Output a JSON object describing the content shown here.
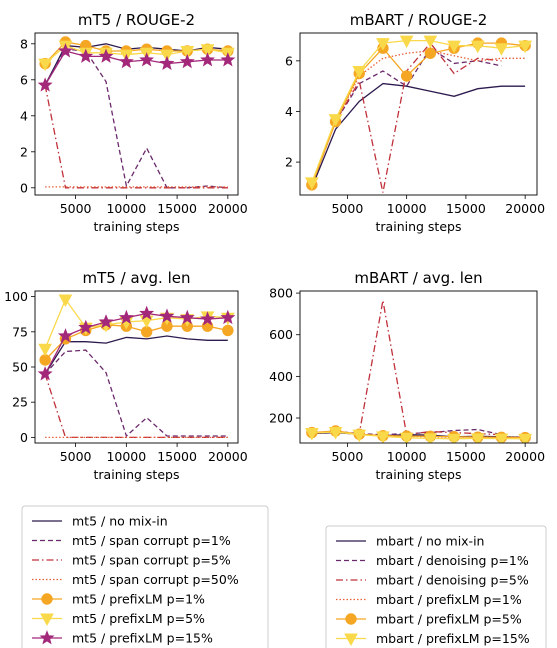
{
  "chart_data": [
    {
      "type": "line",
      "title": "mT5 / ROUGE-2",
      "xlabel": "training steps",
      "ylabel": "",
      "xlim": [
        1000,
        21000
      ],
      "ylim": [
        -0.4,
        8.6
      ],
      "xticks": [
        5000,
        10000,
        15000,
        20000
      ],
      "yticks": [
        0,
        2,
        4,
        6,
        8
      ],
      "x": [
        2000,
        4000,
        6000,
        8000,
        10000,
        12000,
        14000,
        16000,
        18000,
        20000
      ],
      "series": [
        {
          "name": "mt5 / no mix-in",
          "values": [
            5.7,
            7.9,
            7.8,
            8.0,
            7.7,
            7.8,
            7.7,
            7.6,
            7.8,
            7.7
          ]
        },
        {
          "name": "mt5 / span corrupt p=1%",
          "values": [
            5.7,
            7.7,
            7.6,
            5.9,
            0.1,
            2.2,
            0.0,
            0.0,
            0.1,
            0.0
          ]
        },
        {
          "name": "mt5 / span corrupt p=5%",
          "values": [
            5.7,
            0.0,
            0.0,
            0.0,
            0.0,
            0.0,
            0.0,
            0.0,
            0.0,
            0.0
          ]
        },
        {
          "name": "mt5 / span corrupt p=50%",
          "values": [
            0.05,
            0.05,
            0.05,
            0.05,
            0.05,
            0.05,
            0.05,
            0.05,
            0.05,
            0.05
          ]
        },
        {
          "name": "mt5 / prefixLM p=1%",
          "values": [
            6.9,
            8.1,
            7.9,
            7.6,
            7.6,
            7.7,
            7.6,
            7.6,
            7.7,
            7.6
          ]
        },
        {
          "name": "mt5 / prefixLM p=5%",
          "values": [
            6.9,
            7.9,
            7.5,
            7.5,
            7.4,
            7.5,
            7.4,
            7.6,
            7.7,
            7.5
          ]
        },
        {
          "name": "mt5 / prefixLM p=15%",
          "values": [
            5.7,
            7.6,
            7.3,
            7.3,
            7.0,
            7.1,
            6.9,
            7.0,
            7.1,
            7.1
          ]
        }
      ]
    },
    {
      "type": "line",
      "title": "mBART / ROUGE-2",
      "xlabel": "training steps",
      "ylabel": "",
      "xlim": [
        1000,
        21000
      ],
      "ylim": [
        0.7,
        7.1
      ],
      "xticks": [
        5000,
        10000,
        15000,
        20000
      ],
      "yticks": [
        2,
        4,
        6
      ],
      "x": [
        2000,
        4000,
        6000,
        8000,
        10000,
        12000,
        14000,
        16000,
        18000,
        20000
      ],
      "series": [
        {
          "name": "mbart / no mix-in",
          "values": [
            1.0,
            3.3,
            4.4,
            5.1,
            5.0,
            4.8,
            4.6,
            4.9,
            5.0,
            5.0
          ]
        },
        {
          "name": "mbart / denoising p=1%",
          "values": [
            1.1,
            3.6,
            5.1,
            5.6,
            5.0,
            6.5,
            5.9,
            6.0,
            5.8,
            null
          ]
        },
        {
          "name": "mbart / denoising p=5%",
          "values": [
            1.1,
            3.6,
            5.2,
            0.8,
            5.6,
            6.7,
            5.5,
            6.1,
            6.0,
            null
          ]
        },
        {
          "name": "mbart / prefixLM p=1%",
          "values": [
            1.1,
            3.6,
            5.4,
            6.1,
            6.3,
            6.4,
            6.2,
            6.0,
            6.1,
            6.1
          ]
        },
        {
          "name": "mbart / prefixLM p=5%",
          "values": [
            1.1,
            3.6,
            5.5,
            6.5,
            5.4,
            6.3,
            6.5,
            6.7,
            6.7,
            6.6
          ]
        },
        {
          "name": "mbart / prefixLM p=15%",
          "values": [
            1.2,
            3.7,
            5.6,
            6.7,
            6.8,
            6.8,
            6.6,
            6.6,
            6.5,
            6.6
          ]
        }
      ]
    },
    {
      "type": "line",
      "title": "mT5 / avg. len",
      "xlabel": "training steps",
      "ylabel": "",
      "xlim": [
        1000,
        21000
      ],
      "ylim": [
        -4,
        104
      ],
      "xticks": [
        5000,
        10000,
        15000,
        20000
      ],
      "yticks": [
        0,
        25,
        50,
        75,
        100
      ],
      "x": [
        2000,
        4000,
        6000,
        8000,
        10000,
        12000,
        14000,
        16000,
        18000,
        20000
      ],
      "series": [
        {
          "name": "mt5 / no mix-in",
          "values": [
            45,
            68,
            68,
            67,
            71,
            70,
            72,
            70,
            69,
            69
          ]
        },
        {
          "name": "mt5 / span corrupt p=1%",
          "values": [
            45,
            61,
            62,
            46,
            1,
            14,
            1,
            1,
            1,
            1
          ]
        },
        {
          "name": "mt5 / span corrupt p=5%",
          "values": [
            45,
            0,
            0,
            0,
            0,
            0,
            0,
            0,
            0,
            0
          ]
        },
        {
          "name": "mt5 / span corrupt p=50%",
          "values": [
            0,
            0,
            0,
            0,
            0,
            0,
            0,
            0,
            0,
            0
          ]
        },
        {
          "name": "mt5 / prefixLM p=1%",
          "values": [
            55,
            70,
            76,
            80,
            79,
            75,
            79,
            79,
            79,
            76
          ]
        },
        {
          "name": "mt5 / prefixLM p=5%",
          "values": [
            63,
            98,
            78,
            80,
            82,
            83,
            85,
            84,
            86,
            85
          ]
        },
        {
          "name": "mt5 / prefixLM p=15%",
          "values": [
            45,
            72,
            78,
            82,
            85,
            88,
            86,
            85,
            84,
            85
          ]
        }
      ]
    },
    {
      "type": "line",
      "title": "mBART / avg. len",
      "xlabel": "training steps",
      "ylabel": "",
      "xlim": [
        1000,
        21000
      ],
      "ylim": [
        80,
        810
      ],
      "xticks": [
        5000,
        10000,
        15000,
        20000
      ],
      "yticks": [
        200,
        400,
        600,
        800
      ],
      "x": [
        2000,
        4000,
        6000,
        8000,
        10000,
        12000,
        14000,
        16000,
        18000,
        20000
      ],
      "series": [
        {
          "name": "mbart / no mix-in",
          "values": [
            125,
            130,
            122,
            115,
            120,
            118,
            110,
            112,
            110,
            108
          ]
        },
        {
          "name": "mbart / denoising p=1%",
          "values": [
            125,
            135,
            125,
            120,
            125,
            130,
            140,
            145,
            120,
            null
          ]
        },
        {
          "name": "mbart / denoising p=5%",
          "values": [
            125,
            135,
            125,
            765,
            120,
            135,
            130,
            125,
            120,
            null
          ]
        },
        {
          "name": "mbart / prefixLM p=1%",
          "values": [
            125,
            135,
            122,
            118,
            112,
            110,
            108,
            110,
            108,
            108
          ]
        },
        {
          "name": "mbart / prefixLM p=5%",
          "values": [
            130,
            138,
            122,
            115,
            113,
            112,
            110,
            108,
            107,
            106
          ]
        },
        {
          "name": "mbart / prefixLM p=15%",
          "values": [
            128,
            133,
            120,
            112,
            105,
            102,
            100,
            102,
            101,
            100
          ]
        }
      ]
    }
  ],
  "styles": {
    "mt5 / no mix-in": {
      "color": "#2d1a4e",
      "dash": "",
      "marker": ""
    },
    "mt5 / span corrupt p=1%": {
      "color": "#6b2a6c",
      "dash": "5,3",
      "marker": ""
    },
    "mt5 / span corrupt p=5%": {
      "color": "#c0303a",
      "dash": "7,3,1.5,3",
      "marker": ""
    },
    "mt5 / span corrupt p=50%": {
      "color": "#e8603a",
      "dash": "1.5,2",
      "marker": ""
    },
    "mt5 / prefixLM p=1%": {
      "color": "#f5a623",
      "dash": "",
      "marker": "circle"
    },
    "mt5 / prefixLM p=5%": {
      "color": "#f9d94a",
      "dash": "",
      "marker": "triangle-down"
    },
    "mt5 / prefixLM p=15%": {
      "color": "#a3287a",
      "dash": "",
      "marker": "star"
    },
    "mbart / no mix-in": {
      "color": "#2d1a4e",
      "dash": "",
      "marker": ""
    },
    "mbart / denoising p=1%": {
      "color": "#6b2a6c",
      "dash": "5,3",
      "marker": ""
    },
    "mbart / denoising p=5%": {
      "color": "#c0303a",
      "dash": "7,3,1.5,3",
      "marker": ""
    },
    "mbart / prefixLM p=1%": {
      "color": "#e8603a",
      "dash": "1.5,2",
      "marker": ""
    },
    "mbart / prefixLM p=5%": {
      "color": "#f5a623",
      "dash": "",
      "marker": "circle"
    },
    "mbart / prefixLM p=15%": {
      "color": "#f9d94a",
      "dash": "",
      "marker": "triangle-down"
    }
  },
  "legends": [
    {
      "placement": "bottom-left",
      "entries": [
        "mt5 / no mix-in",
        "mt5 / span corrupt p=1%",
        "mt5 / span corrupt p=5%",
        "mt5 / span corrupt p=50%",
        "mt5 / prefixLM p=1%",
        "mt5 / prefixLM p=5%",
        "mt5 / prefixLM p=15%"
      ]
    },
    {
      "placement": "bottom-right",
      "entries": [
        "mbart / no mix-in",
        "mbart / denoising p=1%",
        "mbart / denoising p=5%",
        "mbart / prefixLM p=1%",
        "mbart / prefixLM p=5%",
        "mbart / prefixLM p=15%"
      ]
    }
  ]
}
